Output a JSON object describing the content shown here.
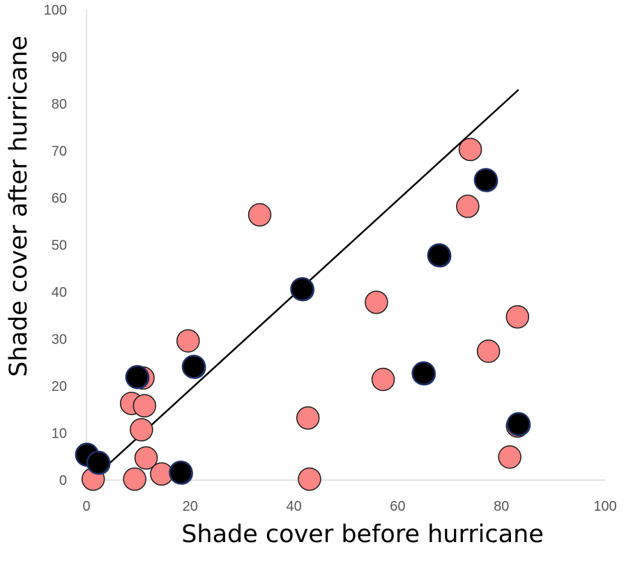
{
  "chart_data": {
    "type": "scatter",
    "title": "",
    "xlabel": "Shade cover before hurricane",
    "ylabel": "Shade cover after hurricane",
    "xlim": [
      0,
      100
    ],
    "ylim": [
      0,
      100
    ],
    "x_ticks": [
      "0",
      "20",
      "40",
      "60",
      "80",
      "100"
    ],
    "y_ticks": [
      "0",
      "10",
      "20",
      "30",
      "40",
      "50",
      "60",
      "70",
      "80",
      "90",
      "100"
    ],
    "grid": false,
    "legend": "none",
    "series": [
      {
        "color": "#f98585",
        "points": [
          {
            "x": 1.3,
            "y": 0.2
          },
          {
            "x": 9.3,
            "y": 0.2
          },
          {
            "x": 8.7,
            "y": 16.3
          },
          {
            "x": 10.9,
            "y": 21.7
          },
          {
            "x": 11.2,
            "y": 15.8
          },
          {
            "x": 10.6,
            "y": 10.7
          },
          {
            "x": 11.5,
            "y": 4.7
          },
          {
            "x": 14.5,
            "y": 1.3
          },
          {
            "x": 19.6,
            "y": 29.6
          },
          {
            "x": 33.4,
            "y": 56.4
          },
          {
            "x": 42.7,
            "y": 13.2
          },
          {
            "x": 43.0,
            "y": 0.2
          },
          {
            "x": 55.9,
            "y": 37.8
          },
          {
            "x": 57.2,
            "y": 21.4
          },
          {
            "x": 73.5,
            "y": 58.2
          },
          {
            "x": 74.0,
            "y": 70.3
          },
          {
            "x": 77.5,
            "y": 27.4
          },
          {
            "x": 81.6,
            "y": 4.9
          },
          {
            "x": 83.1,
            "y": 34.7
          },
          {
            "x": 83.1,
            "y": 11.5
          }
        ]
      },
      {
        "color": "#000000",
        "points": [
          {
            "x": 0.1,
            "y": 5.4
          },
          {
            "x": 2.3,
            "y": 3.7
          },
          {
            "x": 9.8,
            "y": 21.9
          },
          {
            "x": 18.2,
            "y": 1.6
          },
          {
            "x": 20.7,
            "y": 24.1
          },
          {
            "x": 41.6,
            "y": 40.6
          },
          {
            "x": 65.0,
            "y": 22.7
          },
          {
            "x": 68.0,
            "y": 47.8
          },
          {
            "x": 77.0,
            "y": 63.8
          },
          {
            "x": 83.3,
            "y": 11.9
          }
        ]
      }
    ],
    "trendline": {
      "color": "#000000",
      "points": [
        {
          "x": 0.9,
          "y": 0.0
        },
        {
          "x": 83.3,
          "y": 83.0
        }
      ]
    }
  }
}
